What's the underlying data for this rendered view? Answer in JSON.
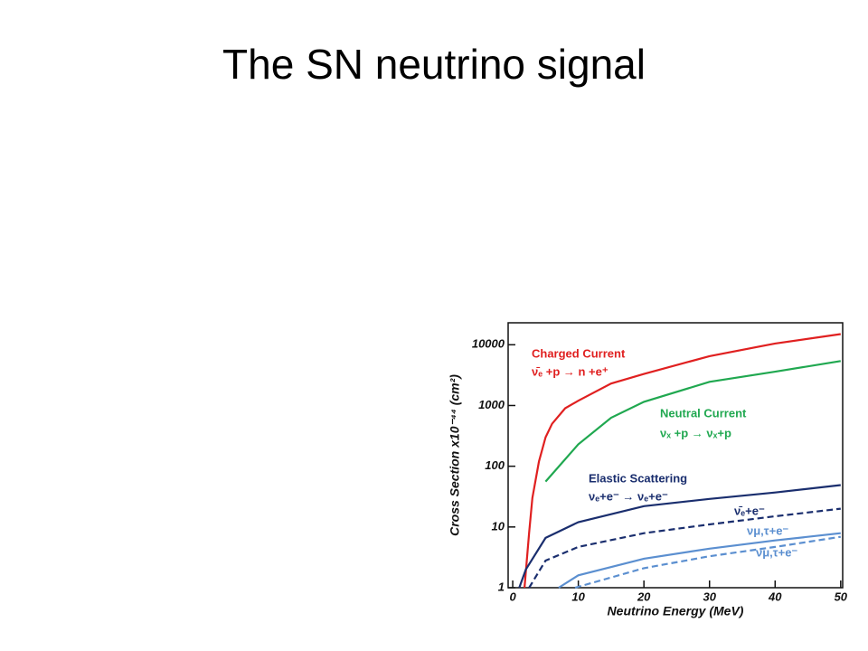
{
  "slide_title": "The SN neutrino signal",
  "chart_data": {
    "type": "line",
    "xlabel": "Neutrino Energy (MeV)",
    "ylabel": "Cross Section x10⁻⁴⁴ (cm²)",
    "log_y": true,
    "xlim": [
      -0.7,
      50.3
    ],
    "ylim": [
      1,
      23000
    ],
    "xticks": [
      0,
      10,
      20,
      30,
      40,
      50
    ],
    "yticks": [
      1,
      10,
      100,
      1000,
      10000
    ],
    "annotations": [
      {
        "text": "Charged Current",
        "color": "#e02020"
      },
      {
        "text": "Neutral Current",
        "color": "#20a850"
      },
      {
        "text": "Elastic Scattering",
        "color": "#1a2e6e"
      }
    ],
    "series": [
      {
        "name": "ν̄ₑ +p → n +e⁺",
        "color": "#e02020",
        "dash": false,
        "x": [
          1.8,
          2.5,
          3,
          4,
          5,
          6,
          8,
          10,
          15,
          20,
          30,
          40,
          50
        ],
        "values": [
          1,
          8,
          30,
          120,
          300,
          500,
          900,
          1200,
          2300,
          3300,
          6500,
          10500,
          15000
        ]
      },
      {
        "name": "νₓ +p → νₓ+p",
        "color": "#20a850",
        "dash": false,
        "x": [
          5,
          10,
          15,
          20,
          30,
          40,
          50
        ],
        "values": [
          56,
          230,
          630,
          1150,
          2450,
          3600,
          5400
        ]
      },
      {
        "name": "νₑ+e⁻ → νₑ+e⁻",
        "color": "#1a2e6e",
        "dash": false,
        "x": [
          1,
          2,
          5,
          10,
          20,
          30,
          40,
          50
        ],
        "values": [
          1,
          2,
          6.6,
          12,
          22,
          29,
          37,
          49
        ]
      },
      {
        "name": "ν̄ₑ+e⁻",
        "color": "#1a2e6e",
        "dash": true,
        "x": [
          2.5,
          5,
          10,
          20,
          30,
          40,
          50
        ],
        "values": [
          1,
          2.8,
          4.7,
          7.9,
          11,
          15,
          20
        ]
      },
      {
        "name": "νμ,τ+e⁻",
        "color": "#5b8fd0",
        "dash": false,
        "x": [
          7,
          10,
          20,
          30,
          40,
          50
        ],
        "values": [
          1,
          1.6,
          3,
          4.4,
          6,
          7.9
        ]
      },
      {
        "name": "ν̄μ,τ+e⁻",
        "color": "#5b8fd0",
        "dash": true,
        "x": [
          9.5,
          20,
          30,
          40,
          50
        ],
        "values": [
          1,
          2.1,
          3.3,
          4.7,
          6.9
        ]
      }
    ]
  }
}
